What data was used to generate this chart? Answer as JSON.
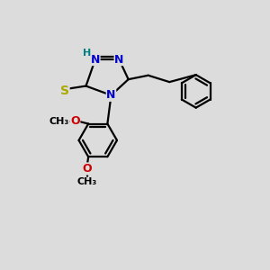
{
  "background_color": "#dcdcdc",
  "atom_colors": {
    "N": "#0000cc",
    "S": "#aaaa00",
    "O": "#cc0000",
    "C": "#000000",
    "H": "#008080"
  },
  "bond_color": "#000000",
  "bond_width": 1.6,
  "figsize": [
    3.0,
    3.0
  ],
  "dpi": 100
}
